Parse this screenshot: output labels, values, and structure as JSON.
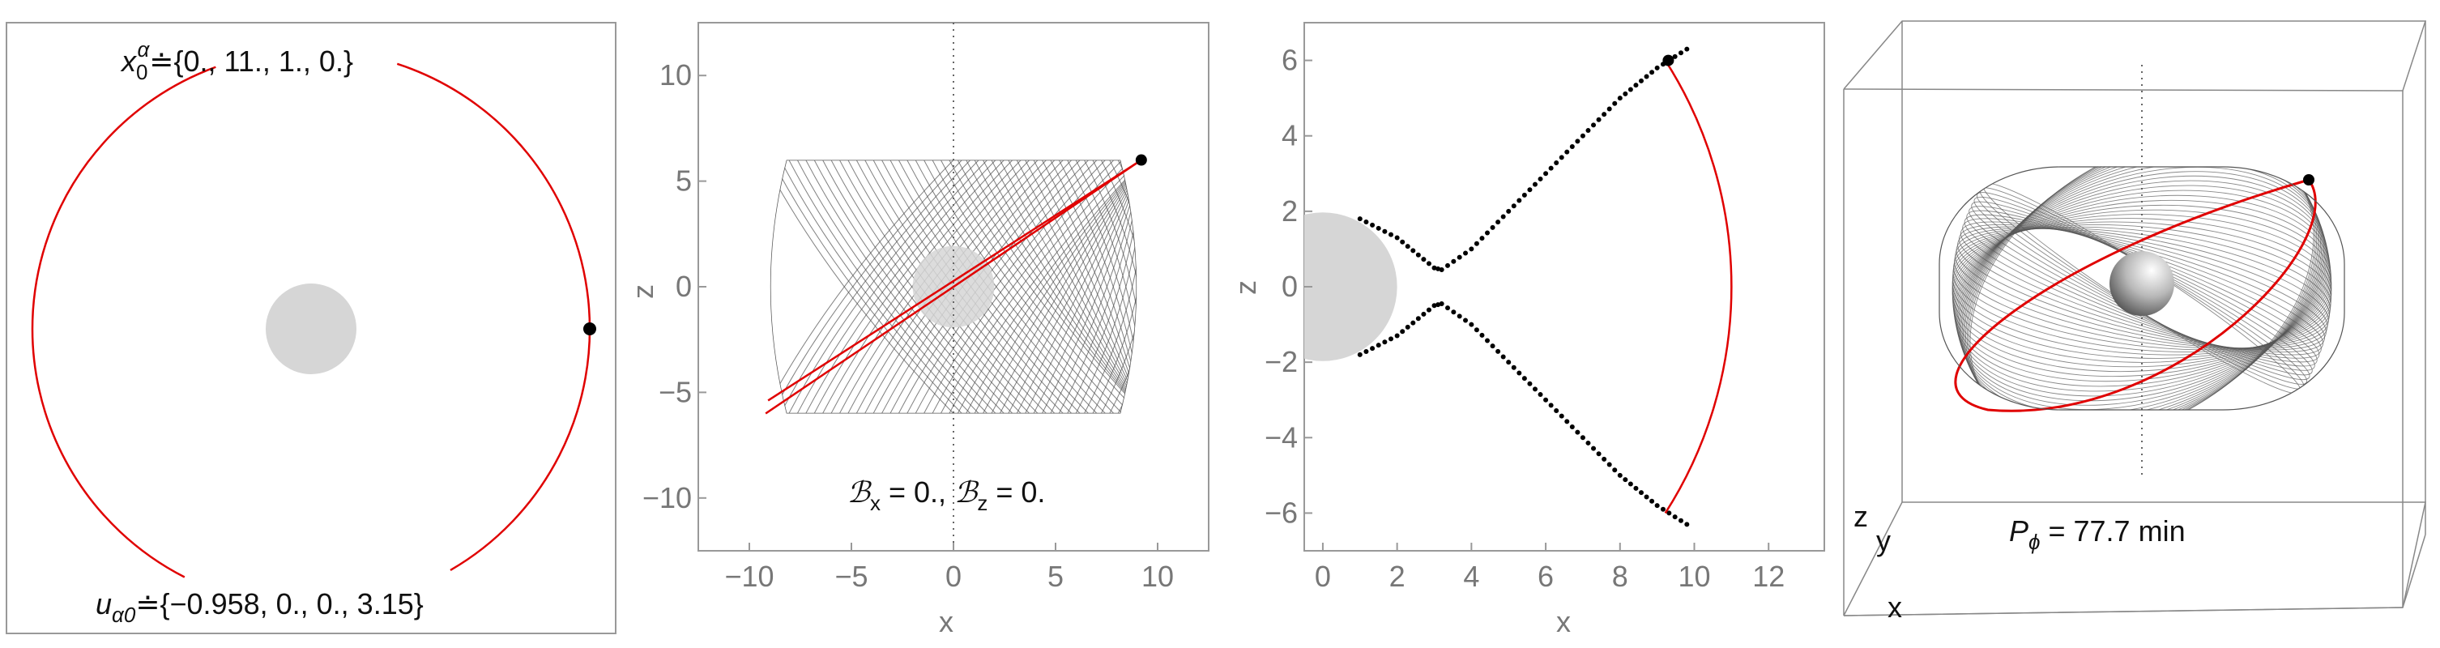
{
  "colors": {
    "orbit": "#e00000",
    "trace": "#555555",
    "body": "#d6d6d6",
    "frame": "#888888",
    "point": "#000000"
  },
  "panel1": {
    "caption_top_prefix": "x",
    "caption_top_sub": "0",
    "caption_top_sup": "α",
    "caption_top_value": "≐{0., 11., 1., 0.}",
    "caption_bottom_prefix": "u",
    "caption_bottom_sub": "α0",
    "caption_bottom_value": "≐{−0.958, 0., 0., 3.15}"
  },
  "panel2": {
    "caption_field1": "ℬ",
    "caption_sub1": "x",
    "caption_mid": " = 0., ",
    "caption_field2": "ℬ",
    "caption_sub2": "z",
    "caption_end": " = 0.",
    "xlabel": "x",
    "ylabel": "z"
  },
  "panel3": {
    "xlabel": "x",
    "ylabel": "z"
  },
  "panel4": {
    "caption_prefix": "P",
    "caption_sub": "ϕ",
    "caption_value": " = 77.7 min",
    "label_z": "z",
    "label_y": "y",
    "label_x": "x"
  },
  "chart_data": [
    {
      "type": "line",
      "note": "orbit projected onto the orbital plane",
      "series": [
        {
          "kind": "circle-arc",
          "r": 11,
          "points": []
        }
      ],
      "marker": {
        "x": 11,
        "y": 0
      },
      "central_body_radius": 2
    },
    {
      "type": "line",
      "xlim": [
        -12.5,
        12.5
      ],
      "ylim": [
        -12.5,
        12.5
      ],
      "xticks": [
        -10,
        -5,
        0,
        5,
        10
      ],
      "yticks": [
        -10,
        -5,
        0,
        5,
        10
      ],
      "orbit_segment": {
        "from": [
          -9.2,
          -6.0
        ],
        "to": [
          9.2,
          6.0
        ]
      },
      "envelope": {
        "x_half_width": 9.3,
        "z_half_height": 6.0
      },
      "marker": {
        "x": 9.2,
        "y": 6.0
      },
      "central_body_radius": 2
    },
    {
      "type": "line",
      "xlim": [
        -0.5,
        13.5
      ],
      "ylim": [
        -7.0,
        7.0
      ],
      "xticks": [
        0,
        2,
        4,
        6,
        8,
        10,
        12
      ],
      "yticks": [
        -6,
        -4,
        -2,
        0,
        2,
        4,
        6
      ],
      "dotted_curve": [
        [
          1.0,
          1.8
        ],
        [
          2.0,
          1.3
        ],
        [
          3.0,
          0.5
        ],
        [
          3.2,
          0.45
        ],
        [
          4.0,
          1.0
        ],
        [
          5.0,
          2.0
        ],
        [
          6.0,
          3.0
        ],
        [
          7.0,
          4.0
        ],
        [
          8.0,
          5.0
        ],
        [
          9.0,
          5.8
        ],
        [
          9.8,
          6.3
        ]
      ],
      "red_arc": {
        "center": [
          0,
          0
        ],
        "r": 11,
        "from_y": 6.0,
        "to_y": -6.0
      },
      "marker": {
        "x": 9.3,
        "y": 6.0
      },
      "central_body_radius": 2
    },
    {
      "type": "line",
      "note": "3D view of the orbit envelope",
      "marker": "top-right of red ellipse"
    }
  ]
}
